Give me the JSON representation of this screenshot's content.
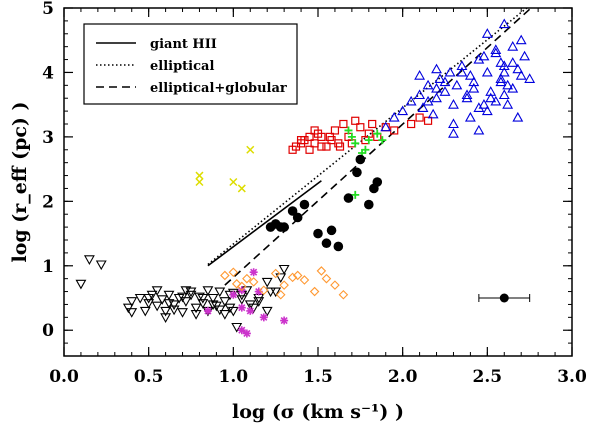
{
  "chart_data": {
    "type": "scatter",
    "xlabel": "log (σ (km s⁻¹) )",
    "ylabel": "log (r_eff (pc) )",
    "xlim": [
      0.0,
      3.0
    ],
    "ylim": [
      -0.4,
      5.0
    ],
    "xticks": [
      "0.0",
      "0.5",
      "1.0",
      "1.5",
      "2.0",
      "2.5",
      "3.0"
    ],
    "yticks": [
      "0",
      "1",
      "2",
      "3",
      "4",
      "5"
    ],
    "colors": {
      "black": "#000000",
      "red": "#e00000",
      "blue": "#0000dd",
      "green": "#22dd22",
      "yellow": "#dddd00",
      "orange": "#ff9933",
      "magenta": "#cc33cc"
    },
    "legend": [
      {
        "label": "giant HII",
        "style": "solid"
      },
      {
        "label": "elliptical",
        "style": "dotted"
      },
      {
        "label": "elliptical+globular",
        "style": "dashed"
      }
    ],
    "lines": [
      {
        "name": "giant HII",
        "style": "solid",
        "x": [
          0.85,
          1.52
        ],
        "y": [
          1.0,
          2.32
        ]
      },
      {
        "name": "elliptical",
        "style": "dotted",
        "x": [
          0.85,
          2.78
        ],
        "y": [
          1.02,
          5.1
        ]
      },
      {
        "name": "elliptical+globular",
        "style": "dashed",
        "x": [
          0.95,
          2.8
        ],
        "y": [
          0.7,
          5.1
        ]
      }
    ],
    "series": [
      {
        "name": "black open triangles",
        "marker": "triangle-down",
        "color": "black",
        "x": [
          0.1,
          0.15,
          0.22,
          0.38,
          0.4,
          0.45,
          0.48,
          0.5,
          0.52,
          0.55,
          0.58,
          0.6,
          0.62,
          0.65,
          0.68,
          0.7,
          0.72,
          0.75,
          0.78,
          0.8,
          0.82,
          0.85,
          0.88,
          0.9,
          0.92,
          0.95,
          0.98,
          1.0,
          1.05,
          1.08,
          1.12,
          1.15,
          1.2,
          1.25,
          1.28,
          1.3,
          0.4,
          0.55,
          0.62,
          0.7,
          0.78,
          0.85,
          0.92,
          1.0,
          1.1,
          1.2,
          0.5,
          0.65,
          0.75,
          0.88,
          0.95,
          1.05,
          1.15,
          0.6,
          0.72,
          0.82,
          0.98,
          1.02,
          1.22
        ],
        "y": [
          0.72,
          1.1,
          1.02,
          0.35,
          0.45,
          0.5,
          0.3,
          0.42,
          0.55,
          0.38,
          0.48,
          0.3,
          0.55,
          0.4,
          0.5,
          0.28,
          0.45,
          0.6,
          0.35,
          0.52,
          0.42,
          0.3,
          0.5,
          0.38,
          0.6,
          0.45,
          0.55,
          0.3,
          0.48,
          0.62,
          0.35,
          0.5,
          0.75,
          0.6,
          0.82,
          0.95,
          0.28,
          0.62,
          0.42,
          0.52,
          0.25,
          0.62,
          0.32,
          0.58,
          0.4,
          0.3,
          0.5,
          0.32,
          0.55,
          0.4,
          0.25,
          0.55,
          0.45,
          0.2,
          0.62,
          0.5,
          0.35,
          0.05,
          0.6
        ]
      },
      {
        "name": "magenta stars",
        "marker": "asterisk",
        "color": "magenta",
        "x": [
          0.85,
          1.0,
          1.05,
          1.05,
          1.08,
          1.1,
          1.12,
          1.15,
          1.18,
          1.3,
          1.05
        ],
        "y": [
          0.3,
          0.55,
          0.62,
          0.0,
          -0.05,
          0.3,
          0.9,
          0.6,
          0.2,
          0.15,
          0.35
        ]
      },
      {
        "name": "orange diamonds",
        "marker": "diamond",
        "color": "orange",
        "x": [
          0.95,
          1.0,
          1.02,
          1.05,
          1.08,
          1.12,
          1.18,
          1.25,
          1.3,
          1.35,
          1.42,
          1.48,
          1.52,
          1.55,
          1.6,
          1.65,
          1.38,
          1.28
        ],
        "y": [
          0.85,
          0.9,
          0.72,
          0.68,
          0.8,
          0.75,
          0.62,
          0.88,
          0.7,
          0.82,
          0.78,
          0.6,
          0.92,
          0.8,
          0.7,
          0.55,
          0.85,
          0.55
        ]
      },
      {
        "name": "yellow crosses",
        "marker": "x",
        "color": "yellow",
        "x": [
          0.8,
          0.8,
          1.0,
          1.05,
          1.1
        ],
        "y": [
          2.4,
          2.3,
          2.3,
          2.2,
          2.8
        ]
      },
      {
        "name": "red squares",
        "marker": "square",
        "color": "red",
        "x": [
          1.35,
          1.37,
          1.4,
          1.42,
          1.45,
          1.48,
          1.5,
          1.52,
          1.55,
          1.58,
          1.6,
          1.62,
          1.65,
          1.68,
          1.72,
          1.75,
          1.78,
          1.82,
          1.85,
          1.9,
          1.95,
          2.05,
          2.1,
          2.15,
          1.45,
          1.52,
          1.57,
          1.48,
          1.4,
          1.63,
          1.7,
          1.8
        ],
        "y": [
          2.8,
          2.85,
          2.9,
          2.95,
          2.8,
          2.9,
          3.05,
          3.0,
          2.85,
          2.95,
          3.1,
          2.9,
          3.2,
          3.0,
          3.25,
          3.15,
          2.95,
          3.2,
          3.0,
          3.15,
          3.1,
          3.2,
          3.3,
          3.25,
          3.0,
          2.85,
          3.0,
          3.1,
          2.95,
          2.85,
          2.9,
          3.05
        ],
        "filled": false
      },
      {
        "name": "green plus",
        "marker": "plus",
        "color": "green",
        "x": [
          1.68,
          1.7,
          1.72,
          1.75,
          1.78,
          1.8,
          1.85,
          1.88,
          1.72,
          1.76
        ],
        "y": [
          3.1,
          3.0,
          2.9,
          2.65,
          2.8,
          2.95,
          3.05,
          2.95,
          2.1,
          2.75
        ]
      },
      {
        "name": "black filled circles",
        "marker": "circle",
        "color": "black",
        "x": [
          1.22,
          1.25,
          1.28,
          1.35,
          1.38,
          1.42,
          1.5,
          1.55,
          1.58,
          1.62,
          1.68,
          1.73,
          1.75,
          1.8,
          1.83,
          1.85,
          1.3
        ],
        "y": [
          1.6,
          1.65,
          1.6,
          1.85,
          1.75,
          1.95,
          1.5,
          1.35,
          1.55,
          1.3,
          2.05,
          2.45,
          2.65,
          1.95,
          2.2,
          2.3,
          1.6
        ]
      },
      {
        "name": "blue open triangles",
        "marker": "triangle-up",
        "color": "blue",
        "x": [
          1.9,
          1.95,
          2.0,
          2.05,
          2.1,
          2.12,
          2.15,
          2.18,
          2.2,
          2.22,
          2.25,
          2.28,
          2.3,
          2.32,
          2.35,
          2.38,
          2.4,
          2.42,
          2.45,
          2.48,
          2.5,
          2.52,
          2.55,
          2.58,
          2.6,
          2.62,
          2.65,
          2.68,
          2.7,
          2.72,
          2.3,
          2.4,
          2.5,
          2.55,
          2.6,
          2.65,
          2.45,
          2.35,
          2.25,
          2.2,
          2.15,
          2.1,
          2.5,
          2.6,
          2.7,
          2.38,
          2.42,
          2.52,
          2.58,
          2.62,
          2.68,
          2.75,
          2.55,
          2.6,
          2.65,
          2.45,
          2.3,
          2.2,
          2.58,
          2.48
        ],
        "y": [
          3.15,
          3.3,
          3.4,
          3.55,
          3.65,
          3.45,
          3.8,
          3.35,
          3.6,
          3.9,
          3.7,
          4.0,
          3.5,
          3.8,
          4.1,
          3.6,
          3.95,
          3.75,
          4.2,
          3.5,
          4.0,
          3.7,
          4.3,
          3.9,
          4.1,
          3.8,
          4.4,
          4.05,
          3.95,
          4.25,
          3.2,
          3.3,
          3.4,
          3.55,
          3.65,
          3.75,
          3.1,
          4.0,
          3.85,
          4.05,
          3.55,
          3.95,
          4.6,
          4.75,
          4.5,
          3.65,
          3.85,
          3.6,
          4.15,
          3.5,
          3.3,
          3.9,
          4.35,
          4.0,
          4.15,
          3.45,
          3.05,
          3.75,
          3.85,
          4.25
        ]
      }
    ],
    "errorbar_point": {
      "x": 2.6,
      "y": 0.5,
      "xerr": [
        2.45,
        2.75
      ],
      "color": "black"
    }
  }
}
